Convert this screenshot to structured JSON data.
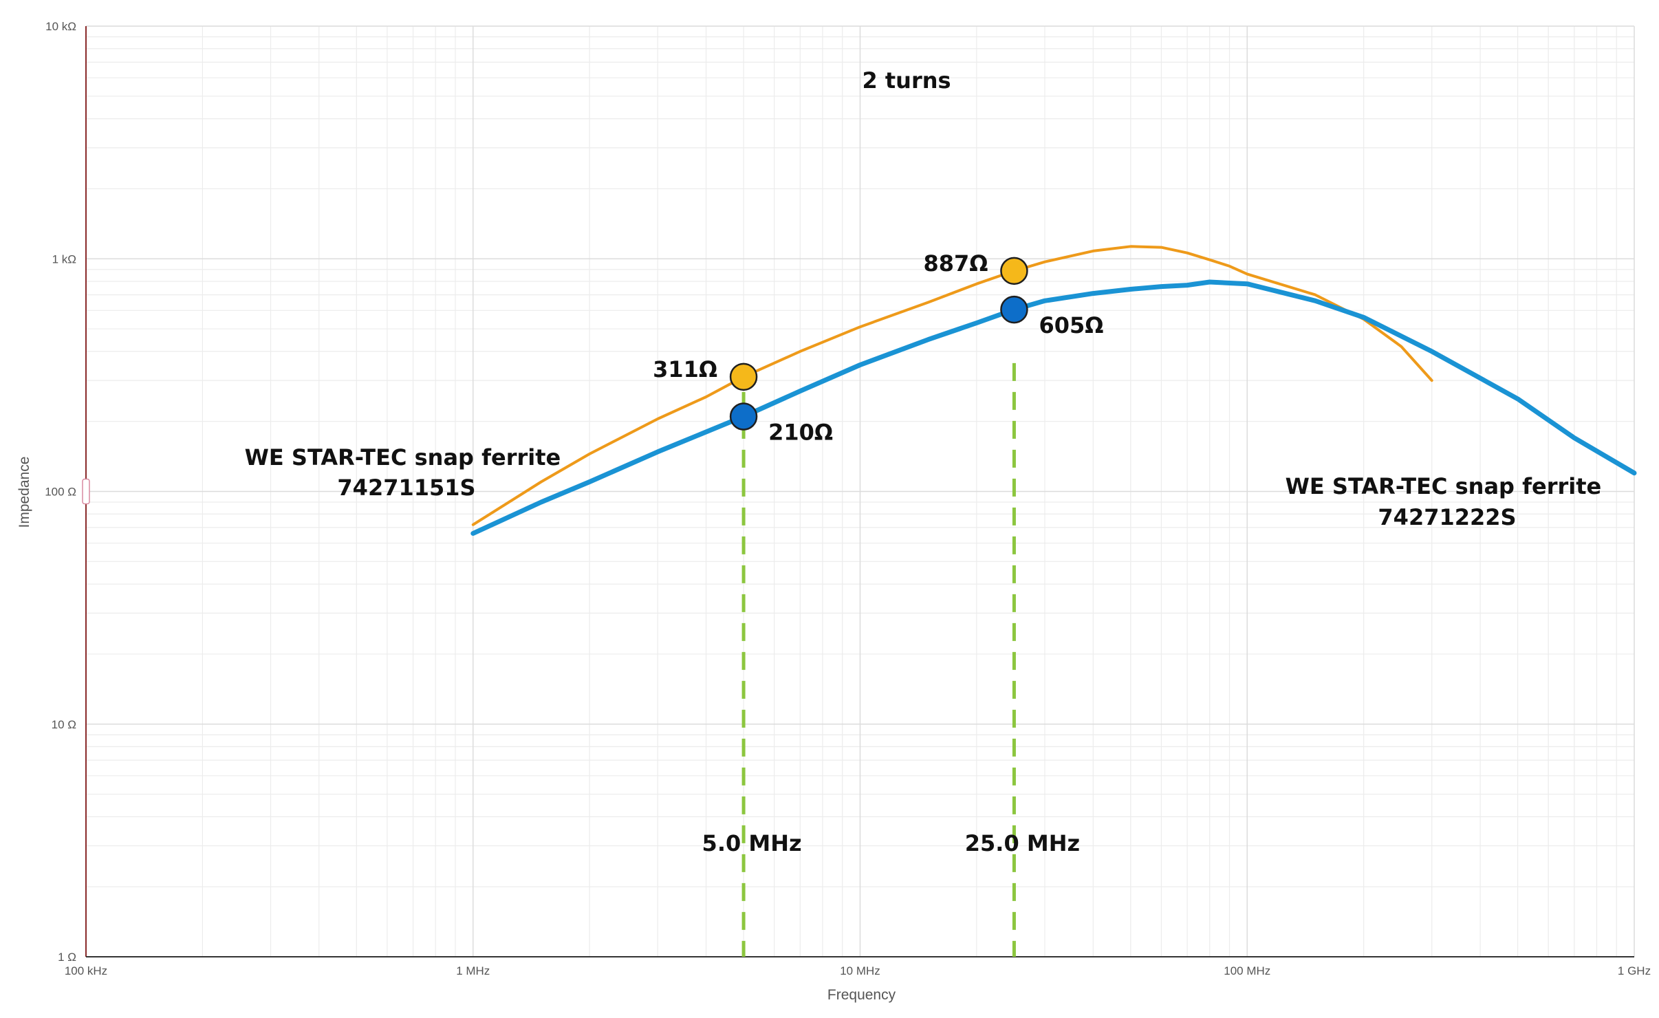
{
  "chart_data": {
    "type": "line",
    "title": "2 turns",
    "xlabel": "Frequency",
    "ylabel": "Impedance",
    "x_scale": "log",
    "y_scale": "log",
    "xlim": [
      100000,
      1000000000
    ],
    "ylim": [
      1,
      10000
    ],
    "grid": true,
    "x_ticks": [
      {
        "value": 100000,
        "label": "100 kHz"
      },
      {
        "value": 1000000,
        "label": "1 MHz"
      },
      {
        "value": 10000000,
        "label": "10 MHz"
      },
      {
        "value": 100000000,
        "label": "100 MHz"
      },
      {
        "value": 1000000000,
        "label": "1 GHz"
      }
    ],
    "y_ticks": [
      {
        "value": 1,
        "label": "1 Ω"
      },
      {
        "value": 10,
        "label": "10 Ω"
      },
      {
        "value": 100,
        "label": "100 Ω"
      },
      {
        "value": 1000,
        "label": "1 kΩ"
      },
      {
        "value": 10000,
        "label": "10 kΩ"
      }
    ],
    "series": [
      {
        "name": "WE STAR-TEC snap ferrite 74271151S",
        "color": "#ee9a1a",
        "x": [
          1000000,
          1500000,
          2000000,
          3000000,
          4000000,
          5000000,
          7000000,
          10000000,
          15000000,
          20000000,
          25000000,
          30000000,
          40000000,
          50000000,
          60000000,
          70000000,
          80000000,
          90000000,
          100000000,
          150000000,
          200000000,
          250000000,
          300000000
        ],
        "y": [
          72,
          110,
          145,
          205,
          255,
          311,
          400,
          510,
          650,
          780,
          887,
          970,
          1080,
          1130,
          1120,
          1060,
          990,
          930,
          860,
          700,
          550,
          420,
          300
        ]
      },
      {
        "name": "WE STAR-TEC snap ferrite 74271222S",
        "color": "#1a93d4",
        "x": [
          1000000,
          1500000,
          2000000,
          3000000,
          5000000,
          7000000,
          10000000,
          15000000,
          20000000,
          25000000,
          30000000,
          40000000,
          50000000,
          60000000,
          70000000,
          80000000,
          100000000,
          150000000,
          200000000,
          300000000,
          500000000,
          700000000,
          1000000000
        ],
        "y": [
          66,
          90,
          110,
          148,
          210,
          270,
          350,
          450,
          530,
          605,
          660,
          710,
          740,
          760,
          770,
          795,
          780,
          660,
          560,
          400,
          250,
          170,
          120
        ]
      }
    ],
    "markers": [
      {
        "x": 5000000,
        "y": 311,
        "label": "311Ω",
        "color": "#f5b81a"
      },
      {
        "x": 5000000,
        "y": 210,
        "label": "210Ω",
        "color": "#0d6ec9"
      },
      {
        "x": 25000000,
        "y": 887,
        "label": "887Ω",
        "color": "#f5b81a"
      },
      {
        "x": 25000000,
        "y": 605,
        "label": "605Ω",
        "color": "#0d6ec9"
      }
    ],
    "vlines": [
      {
        "x": 5000000,
        "label": "5.0 MHz",
        "color": "#8cc63f"
      },
      {
        "x": 25000000,
        "label": "25.0 MHz",
        "color": "#8cc63f"
      }
    ],
    "annotations": [
      {
        "lines": [
          "WE STAR-TEC snap ferrite",
          "74271151S"
        ]
      },
      {
        "lines": [
          "WE STAR-TEC snap ferrite",
          "74271222S"
        ]
      }
    ],
    "colors": {
      "grid_major": "#dcdcdc",
      "grid_minor": "#ececec",
      "axis": "#8a2a2a",
      "tick_text": "#555555",
      "annotation_text": "#111111"
    }
  }
}
